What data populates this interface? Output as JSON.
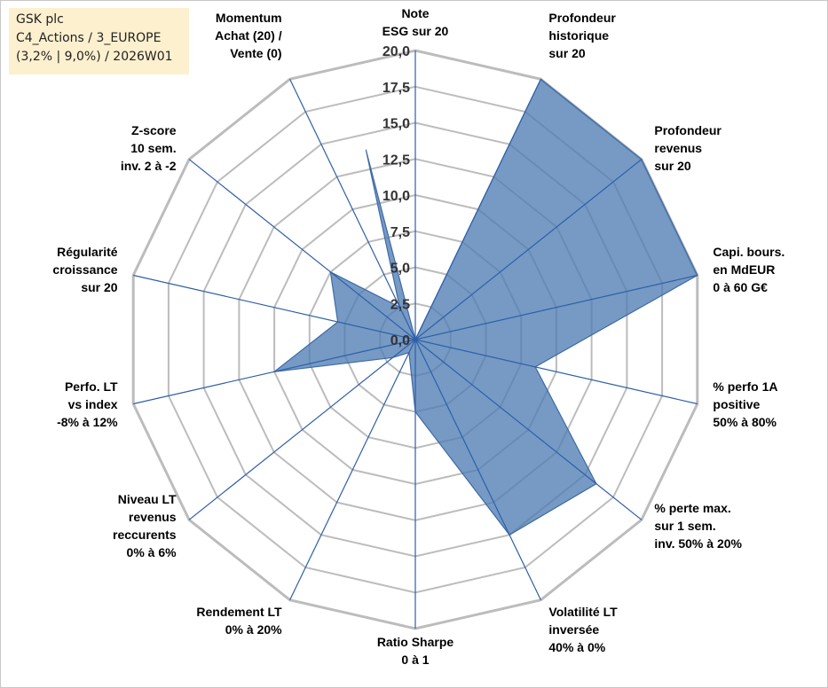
{
  "info_box": {
    "line1": "GSK plc",
    "line2": "C4_Actions / 3_EUROPE",
    "line3": "(3,2% | 9,0%) / 2026W01"
  },
  "colors": {
    "fill": "#4f7eb4",
    "stroke": "#3e6aa6",
    "spoke": "#2e5fa8",
    "grid": "#bcbcbc"
  },
  "chart_data": {
    "type": "radar",
    "title": "",
    "rlim": [
      0,
      20
    ],
    "ticks": [
      "0,0",
      "2,5",
      "5,0",
      "7,5",
      "10,0",
      "12,5",
      "15,0",
      "17,5",
      "20,0"
    ],
    "tick_values": [
      0,
      2.5,
      5,
      7.5,
      10,
      12.5,
      15,
      17.5,
      20
    ],
    "grid": true,
    "axes": [
      {
        "label": [
          "Note",
          "ESG sur 20"
        ],
        "value": 0
      },
      {
        "label": [
          "Profondeur",
          "historique",
          "sur 20"
        ],
        "value": 20
      },
      {
        "label": [
          "Profondeur",
          "revenus",
          "sur 20"
        ],
        "value": 20
      },
      {
        "label": [
          "Capi. bours.",
          "en MdEUR",
          "0 à 60 G€"
        ],
        "value": 20
      },
      {
        "label": [
          "% perfo 1A",
          "positive",
          "50% à 80%"
        ],
        "value": 8.5
      },
      {
        "label": [
          "% perte max.",
          "sur 1 sem.",
          "inv. 50% à 20%"
        ],
        "value": 16
      },
      {
        "label": [
          "Volatilité LT",
          "inversée",
          "40% à 0%"
        ],
        "value": 15
      },
      {
        "label": [
          "Ratio Sharpe",
          "0 à 1"
        ],
        "value": 5
      },
      {
        "label": [
          "Rendement LT",
          "0% à 20%"
        ],
        "value": 1
      },
      {
        "label": [
          "Niveau LT",
          "revenus",
          "reccurents",
          "0% à 6%"
        ],
        "value": 2
      },
      {
        "label": [
          "Perfo. LT",
          "vs index",
          "-8% à 12%"
        ],
        "value": 10
      },
      {
        "label": [
          "Régularité",
          "croissance",
          "sur 20"
        ],
        "value": 5.5
      },
      {
        "label": [
          "Z-score",
          "10 sem.",
          "inv. 2 à -2"
        ],
        "value": 7.5
      },
      {
        "label": [
          "Momentum",
          "Achat (20) /",
          "Vente (0)"
        ],
        "value": 2.5
      }
    ],
    "extra_point": {
      "between": [
        13,
        0
      ],
      "value": 14
    }
  }
}
